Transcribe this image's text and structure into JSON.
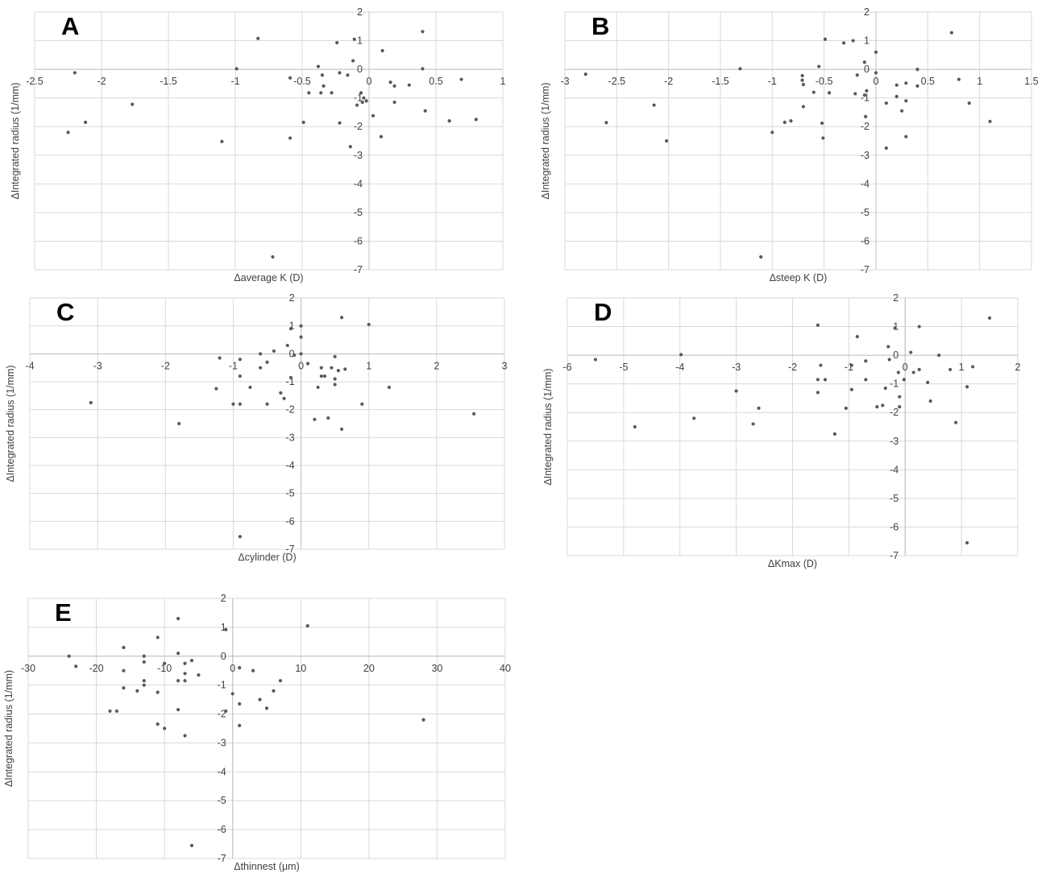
{
  "figure": {
    "background": "#ffffff",
    "grid_color": "#d9d9d9",
    "axis_color": "#bfbfbf",
    "point_color": "#595959",
    "text_color": "#404040"
  },
  "chart_data": [
    {
      "panel": "A",
      "type": "scatter",
      "xlabel": "Δaverage K (D)",
      "ylabel": "ΔIntegrated radius (1/mm)",
      "xlim": [
        -2.5,
        1
      ],
      "ylim": [
        -7,
        2
      ],
      "xticks": [
        -2.5,
        -2,
        -1.5,
        -1,
        -0.5,
        0,
        0.5,
        1
      ],
      "xtick_labels": [
        "-2.5",
        "-2",
        "-1.5",
        "-1",
        "-0.5",
        "0",
        "0.5",
        "1"
      ],
      "yticks": [
        -7,
        -6,
        -5,
        -4,
        -3,
        -2,
        -1,
        0,
        1,
        2
      ],
      "grid": true,
      "points": [
        [
          -2.2,
          -0.12
        ],
        [
          -2.25,
          -2.2
        ],
        [
          -2.12,
          -1.85
        ],
        [
          -1.77,
          -1.22
        ],
        [
          -0.99,
          0.02
        ],
        [
          -1.1,
          -2.52
        ],
        [
          -0.83,
          1.08
        ],
        [
          -0.59,
          -0.3
        ],
        [
          -0.59,
          -2.4
        ],
        [
          -0.72,
          -6.55
        ],
        [
          -0.49,
          -1.85
        ],
        [
          -0.45,
          -0.82
        ],
        [
          -0.38,
          0.1
        ],
        [
          -0.36,
          -0.82
        ],
        [
          -0.34,
          -0.58
        ],
        [
          -0.35,
          -0.2
        ],
        [
          -0.28,
          -0.82
        ],
        [
          -0.24,
          0.93
        ],
        [
          -0.22,
          -0.12
        ],
        [
          -0.22,
          -1.87
        ],
        [
          -0.16,
          -0.2
        ],
        [
          -0.14,
          -2.7
        ],
        [
          -0.12,
          0.3
        ],
        [
          -0.11,
          1.05
        ],
        [
          -0.09,
          -1.25
        ],
        [
          -0.06,
          -0.82
        ],
        [
          -0.05,
          -1.15
        ],
        [
          -0.04,
          -1.0
        ],
        [
          -0.02,
          -1.1
        ],
        [
          0.03,
          -1.62
        ],
        [
          0.09,
          -2.35
        ],
        [
          0.1,
          0.65
        ],
        [
          0.16,
          -0.45
        ],
        [
          0.19,
          -0.58
        ],
        [
          0.19,
          -1.15
        ],
        [
          0.3,
          -0.55
        ],
        [
          0.4,
          1.32
        ],
        [
          0.4,
          0.02
        ],
        [
          0.42,
          -1.45
        ],
        [
          0.6,
          -1.8
        ],
        [
          0.69,
          -0.35
        ],
        [
          0.8,
          -1.75
        ]
      ]
    },
    {
      "panel": "B",
      "type": "scatter",
      "xlabel": "Δsteep K (D)",
      "ylabel": "ΔIntegrated radius (1/mm)",
      "xlim": [
        -3,
        1.5
      ],
      "ylim": [
        -7,
        2
      ],
      "xticks": [
        -3,
        -2.5,
        -2,
        -1.5,
        -1,
        -0.5,
        0,
        0.5,
        1,
        1.5
      ],
      "xtick_labels": [
        "-3",
        "-2.5",
        "-2",
        "-1.5",
        "-1",
        "-0.5",
        "0",
        "0.5",
        "1",
        "1.5"
      ],
      "yticks": [
        -7,
        -6,
        -5,
        -4,
        -3,
        -2,
        -1,
        0,
        1,
        2
      ],
      "grid": true,
      "points": [
        [
          -2.8,
          -0.17
        ],
        [
          -2.6,
          -1.86
        ],
        [
          -2.14,
          -1.25
        ],
        [
          -2.02,
          -2.5
        ],
        [
          -1.31,
          0.02
        ],
        [
          -1.11,
          -6.55
        ],
        [
          -1.0,
          -2.2
        ],
        [
          -0.88,
          -1.85
        ],
        [
          -0.82,
          -1.8
        ],
        [
          -0.7,
          -1.3
        ],
        [
          -0.7,
          -0.53
        ],
        [
          -0.71,
          -0.38
        ],
        [
          -0.71,
          -0.22
        ],
        [
          -0.6,
          -0.8
        ],
        [
          -0.55,
          0.1
        ],
        [
          -0.52,
          -1.88
        ],
        [
          -0.51,
          -2.4
        ],
        [
          -0.49,
          1.05
        ],
        [
          -0.45,
          -0.82
        ],
        [
          -0.31,
          0.92
        ],
        [
          -0.22,
          1.0
        ],
        [
          -0.2,
          -0.85
        ],
        [
          -0.18,
          -0.2
        ],
        [
          -0.11,
          0.25
        ],
        [
          -0.11,
          -0.9
        ],
        [
          -0.1,
          -1.65
        ],
        [
          -0.09,
          -0.75
        ],
        [
          0,
          0.6
        ],
        [
          0,
          -0.12
        ],
        [
          0.1,
          -1.18
        ],
        [
          0.1,
          -2.75
        ],
        [
          0.2,
          -0.55
        ],
        [
          0.2,
          -0.95
        ],
        [
          0.25,
          -1.45
        ],
        [
          0.29,
          -0.48
        ],
        [
          0.29,
          -1.1
        ],
        [
          0.29,
          -2.35
        ],
        [
          0.4,
          0.0
        ],
        [
          0.4,
          -0.58
        ],
        [
          0.73,
          1.28
        ],
        [
          0.8,
          -0.35
        ],
        [
          0.9,
          -1.18
        ],
        [
          1.1,
          -1.82
        ]
      ]
    },
    {
      "panel": "C",
      "type": "scatter",
      "xlabel": "Δcylinder (D)",
      "ylabel": "ΔIntegrated radius (1/mm)",
      "xlim": [
        -4,
        3
      ],
      "ylim": [
        -7,
        2
      ],
      "xticks": [
        -4,
        -3,
        -2,
        -1,
        0,
        1,
        2,
        3
      ],
      "xtick_labels": [
        "-4",
        "-3",
        "-2",
        "-1",
        "0",
        "1",
        "2",
        "3"
      ],
      "yticks": [
        -7,
        -6,
        -5,
        -4,
        -3,
        -2,
        -1,
        0,
        1,
        2
      ],
      "grid": true,
      "points": [
        [
          -3.1,
          -1.75
        ],
        [
          -1.8,
          -2.5
        ],
        [
          -1.25,
          -1.25
        ],
        [
          -1.2,
          -0.15
        ],
        [
          -1.0,
          -1.8
        ],
        [
          -0.9,
          -0.2
        ],
        [
          -0.9,
          -0.8
        ],
        [
          -0.9,
          -1.8
        ],
        [
          -0.9,
          -6.55
        ],
        [
          -0.75,
          -1.2
        ],
        [
          -0.6,
          -0.5
        ],
        [
          -0.6,
          0.0
        ],
        [
          -0.5,
          -0.3
        ],
        [
          -0.5,
          -1.8
        ],
        [
          -0.4,
          0.1
        ],
        [
          -0.3,
          -1.4
        ],
        [
          -0.25,
          -1.6
        ],
        [
          -0.2,
          0.3
        ],
        [
          -0.15,
          0.9
        ],
        [
          -0.15,
          -0.85
        ],
        [
          -0.1,
          -0.05
        ],
        [
          0.0,
          1.0
        ],
        [
          0.0,
          0.6
        ],
        [
          0.0,
          0.0
        ],
        [
          0.1,
          -0.35
        ],
        [
          0.2,
          -2.35
        ],
        [
          0.25,
          -1.2
        ],
        [
          0.3,
          -0.5
        ],
        [
          0.3,
          -0.8
        ],
        [
          0.35,
          -0.8
        ],
        [
          0.4,
          -2.3
        ],
        [
          0.45,
          -0.5
        ],
        [
          0.5,
          -0.1
        ],
        [
          0.5,
          -1.1
        ],
        [
          0.5,
          -0.9
        ],
        [
          0.55,
          -0.6
        ],
        [
          0.6,
          -2.7
        ],
        [
          0.6,
          1.3
        ],
        [
          0.65,
          -0.55
        ],
        [
          0.9,
          -1.8
        ],
        [
          1.0,
          1.05
        ],
        [
          1.3,
          -1.2
        ],
        [
          2.55,
          -2.15
        ]
      ]
    },
    {
      "panel": "D",
      "type": "scatter",
      "xlabel": "ΔKmax (D)",
      "ylabel": "ΔIntegrated radius (1/mm)",
      "xlim": [
        -6,
        2
      ],
      "ylim": [
        -7,
        2
      ],
      "xticks": [
        -6,
        -5,
        -4,
        -3,
        -2,
        -1,
        0,
        1,
        2
      ],
      "xtick_labels": [
        "-6",
        "-5",
        "-4",
        "-3",
        "-2",
        "-1",
        "0",
        "1",
        "2"
      ],
      "yticks": [
        -7,
        -6,
        -5,
        -4,
        -3,
        -2,
        -1,
        0,
        1,
        2
      ],
      "grid": true,
      "points": [
        [
          -5.5,
          -0.15
        ],
        [
          -4.8,
          -2.5
        ],
        [
          -3.98,
          0.02
        ],
        [
          -3.75,
          -2.2
        ],
        [
          -3.0,
          -1.25
        ],
        [
          -2.6,
          -1.85
        ],
        [
          -2.7,
          -2.4
        ],
        [
          -1.55,
          1.05
        ],
        [
          -1.55,
          -0.85
        ],
        [
          -1.55,
          -1.3
        ],
        [
          -1.5,
          -0.35
        ],
        [
          -1.42,
          -0.85
        ],
        [
          -1.25,
          -2.75
        ],
        [
          -1.05,
          -1.85
        ],
        [
          -0.95,
          -0.35
        ],
        [
          -0.95,
          -1.2
        ],
        [
          -0.85,
          0.65
        ],
        [
          -0.7,
          -0.2
        ],
        [
          -0.7,
          -0.85
        ],
        [
          -0.5,
          -1.8
        ],
        [
          -0.4,
          -1.75
        ],
        [
          -0.35,
          -1.15
        ],
        [
          -0.3,
          0.3
        ],
        [
          -0.28,
          -0.15
        ],
        [
          -0.18,
          0.95
        ],
        [
          -0.12,
          -0.6
        ],
        [
          -0.1,
          -1.45
        ],
        [
          -0.1,
          -1.8
        ],
        [
          -0.02,
          -0.85
        ],
        [
          0.1,
          0.1
        ],
        [
          0.15,
          -0.6
        ],
        [
          0.25,
          1.0
        ],
        [
          0.25,
          -0.5
        ],
        [
          0.4,
          -0.95
        ],
        [
          0.45,
          -1.6
        ],
        [
          0.6,
          0.0
        ],
        [
          0.8,
          -0.5
        ],
        [
          0.9,
          -2.35
        ],
        [
          1.1,
          -6.55
        ],
        [
          1.1,
          -1.1
        ],
        [
          1.2,
          -0.4
        ],
        [
          1.5,
          1.3
        ]
      ]
    },
    {
      "panel": "E",
      "type": "scatter",
      "xlabel": "Δthinnest (μm)",
      "ylabel": "ΔIntegrated radius (1/mm)",
      "xlim": [
        -30,
        40
      ],
      "ylim": [
        -7,
        2
      ],
      "xticks": [
        -30,
        -20,
        -10,
        0,
        10,
        20,
        30,
        40
      ],
      "xtick_labels": [
        "-30",
        "-20",
        "-10",
        "0",
        "10",
        "20",
        "30",
        "40"
      ],
      "yticks": [
        -7,
        -6,
        -5,
        -4,
        -3,
        -2,
        -1,
        0,
        1,
        2
      ],
      "grid": true,
      "points": [
        [
          -24,
          0.0
        ],
        [
          -23,
          -0.35
        ],
        [
          -18,
          -1.9
        ],
        [
          -17,
          -1.9
        ],
        [
          -16,
          0.3
        ],
        [
          -16,
          -0.5
        ],
        [
          -16,
          -1.1
        ],
        [
          -14,
          -1.2
        ],
        [
          -13,
          0.0
        ],
        [
          -13,
          -0.2
        ],
        [
          -13,
          -0.85
        ],
        [
          -13,
          -1.0
        ],
        [
          -11,
          0.65
        ],
        [
          -11,
          -1.25
        ],
        [
          -11,
          -2.35
        ],
        [
          -10,
          -0.25
        ],
        [
          -10,
          -2.5
        ],
        [
          -8,
          1.3
        ],
        [
          -8,
          0.1
        ],
        [
          -8,
          -0.85
        ],
        [
          -8,
          -1.85
        ],
        [
          -7,
          -0.25
        ],
        [
          -7,
          -0.6
        ],
        [
          -7,
          -0.85
        ],
        [
          -7,
          -2.75
        ],
        [
          -6,
          -0.15
        ],
        [
          -6,
          -6.55
        ],
        [
          -5,
          -0.65
        ],
        [
          -1,
          0.92
        ],
        [
          -1,
          -1.9
        ],
        [
          0,
          -1.3
        ],
        [
          1,
          -0.4
        ],
        [
          1,
          -1.65
        ],
        [
          1,
          -2.4
        ],
        [
          3,
          -0.5
        ],
        [
          4,
          -1.5
        ],
        [
          5,
          -1.8
        ],
        [
          6,
          -1.2
        ],
        [
          7,
          -0.85
        ],
        [
          11,
          1.05
        ],
        [
          28,
          -2.2
        ]
      ]
    }
  ]
}
